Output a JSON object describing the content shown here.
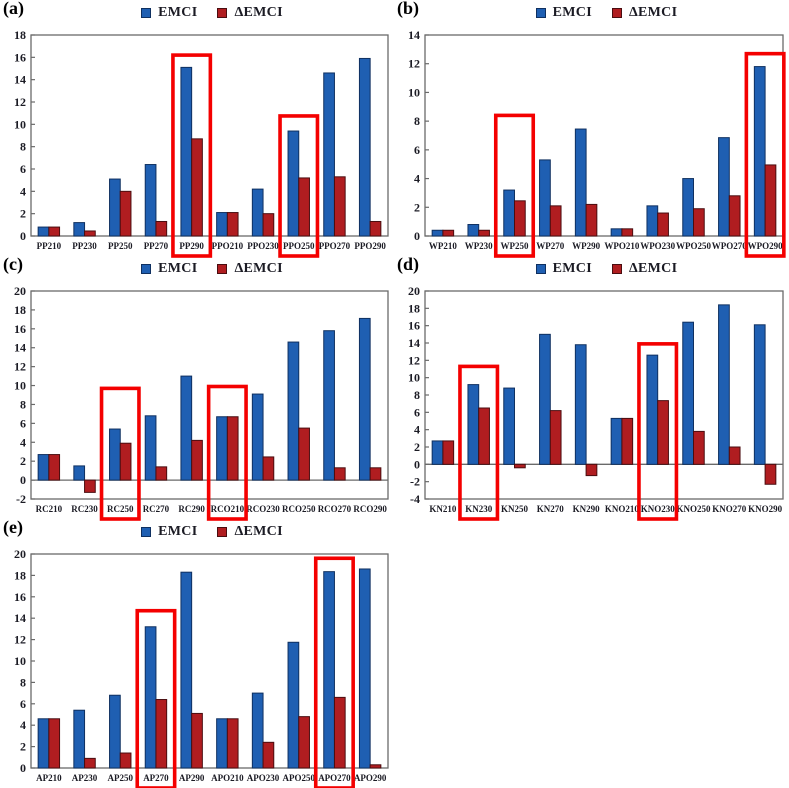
{
  "legend": {
    "emci": "EMCI",
    "demci": "ΔEMCI"
  },
  "colors": {
    "emci": "#1f5fb2",
    "demci": "#b01d20",
    "emci_border": "#0f3060",
    "demci_border": "#4a0d10",
    "highlight": "#f40000",
    "axis": "#6a6a6a",
    "text": "#1b1b24"
  },
  "chart_data": [
    {
      "type": "bar",
      "panel_label": "(a)",
      "categories": [
        "PP210",
        "PP230",
        "PP250",
        "PP270",
        "PP290",
        "PPO210",
        "PPO230",
        "PPO250",
        "PPO270",
        "PPO290"
      ],
      "series": [
        {
          "name": "EMCI",
          "values": [
            0.8,
            1.2,
            5.1,
            6.4,
            15.1,
            2.1,
            4.2,
            9.4,
            14.6,
            15.9
          ]
        },
        {
          "name": "ΔEMCI",
          "values": [
            0.8,
            0.45,
            4.0,
            1.3,
            8.7,
            2.1,
            2.0,
            5.2,
            5.3,
            1.3
          ]
        }
      ],
      "ylim": [
        0,
        18
      ],
      "ytick": 2,
      "grid": false,
      "legend_position": "top",
      "yticks": [
        0,
        2,
        4,
        6,
        8,
        10,
        12,
        14,
        16,
        18
      ],
      "highlights": [
        {
          "category": "PP290",
          "top": 16.2
        },
        {
          "category": "PPO250",
          "top": 10.75
        }
      ]
    },
    {
      "type": "bar",
      "panel_label": "(b)",
      "categories": [
        "WP210",
        "WP230",
        "WP250",
        "WP270",
        "WP290",
        "WPO210",
        "WPO230",
        "WPO250",
        "WPO270",
        "WPO290"
      ],
      "series": [
        {
          "name": "EMCI",
          "values": [
            0.4,
            0.8,
            3.2,
            5.3,
            7.45,
            0.5,
            2.1,
            4.0,
            6.85,
            11.8
          ]
        },
        {
          "name": "ΔEMCI",
          "values": [
            0.4,
            0.4,
            2.45,
            2.1,
            2.2,
            0.5,
            1.6,
            1.9,
            2.8,
            4.95
          ]
        }
      ],
      "ylim": [
        0,
        14
      ],
      "ytick": 2,
      "grid": false,
      "legend_position": "top",
      "yticks": [
        0,
        2,
        4,
        6,
        8,
        10,
        12,
        14
      ],
      "highlights": [
        {
          "category": "WP250",
          "top": 8.4
        },
        {
          "category": "WPO290",
          "top": 12.7
        }
      ]
    },
    {
      "type": "bar",
      "panel_label": "(c)",
      "categories": [
        "RC210",
        "RC230",
        "RC250",
        "RC270",
        "RC290",
        "RCO210",
        "RCO230",
        "RCO250",
        "RCO270",
        "RCO290"
      ],
      "series": [
        {
          "name": "EMCI",
          "values": [
            2.7,
            1.5,
            5.4,
            6.8,
            11.0,
            6.7,
            9.1,
            14.6,
            15.8,
            17.1
          ]
        },
        {
          "name": "ΔEMCI",
          "values": [
            2.7,
            -1.3,
            3.9,
            1.4,
            4.2,
            6.7,
            2.45,
            5.5,
            1.3,
            1.3
          ]
        }
      ],
      "ylim": [
        -2,
        20
      ],
      "ytick": 2,
      "grid": false,
      "legend_position": "top",
      "yticks": [
        -2,
        0,
        2,
        4,
        6,
        8,
        10,
        12,
        14,
        16,
        18,
        20
      ],
      "highlights": [
        {
          "category": "RC250",
          "top": 9.7
        },
        {
          "category": "RCO210",
          "top": 9.9
        }
      ]
    },
    {
      "type": "bar",
      "panel_label": "(d)",
      "categories": [
        "KN210",
        "KN230",
        "KN250",
        "KN270",
        "KN290",
        "KNO210",
        "KNO230",
        "KNO250",
        "KNO270",
        "KNO290"
      ],
      "series": [
        {
          "name": "EMCI",
          "values": [
            2.7,
            9.2,
            8.8,
            15.0,
            13.8,
            5.3,
            12.6,
            16.4,
            18.4,
            16.1
          ]
        },
        {
          "name": "ΔEMCI",
          "values": [
            2.7,
            6.5,
            -0.4,
            6.2,
            -1.3,
            5.3,
            7.35,
            3.8,
            2.0,
            -2.3
          ]
        }
      ],
      "ylim": [
        -4,
        20
      ],
      "ytick": 2,
      "grid": false,
      "legend_position": "top",
      "yticks": [
        -4,
        -2,
        0,
        2,
        4,
        6,
        8,
        10,
        12,
        14,
        16,
        18,
        20
      ],
      "highlights": [
        {
          "category": "KN230",
          "top": 11.3
        },
        {
          "category": "KNO230",
          "top": 13.9
        }
      ]
    },
    {
      "type": "bar",
      "panel_label": "(e)",
      "categories": [
        "AP210",
        "AP230",
        "AP250",
        "AP270",
        "AP290",
        "APO210",
        "APO230",
        "APO250",
        "APO270",
        "APO290"
      ],
      "series": [
        {
          "name": "EMCI",
          "values": [
            4.6,
            5.4,
            6.8,
            13.2,
            18.3,
            4.6,
            7.0,
            11.75,
            18.35,
            18.6
          ]
        },
        {
          "name": "ΔEMCI",
          "values": [
            4.6,
            0.9,
            1.4,
            6.4,
            5.1,
            4.6,
            2.4,
            4.8,
            6.6,
            0.3
          ]
        }
      ],
      "ylim": [
        0,
        20
      ],
      "ytick": 2,
      "grid": false,
      "legend_position": "top",
      "yticks": [
        0,
        2,
        4,
        6,
        8,
        10,
        12,
        14,
        16,
        18,
        20
      ],
      "highlights": [
        {
          "category": "AP270",
          "top": 14.7
        },
        {
          "category": "APO270",
          "top": 19.6
        }
      ]
    }
  ]
}
